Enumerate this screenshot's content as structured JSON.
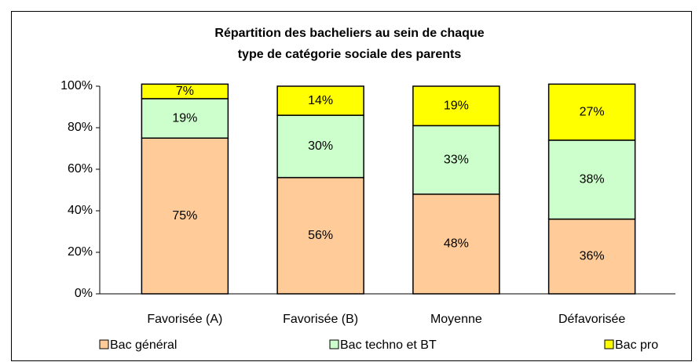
{
  "chart_data": {
    "type": "stacked_bar",
    "title": [
      "Répartition des bacheliers au sein de chaque",
      "type de catégorie sociale des parents"
    ],
    "categories": [
      "Favorisée (A)",
      "Favorisée (B)",
      "Moyenne",
      "Défavorisée"
    ],
    "series": [
      {
        "name": "Bac général",
        "color": "#FFCC99",
        "values": [
          75,
          56,
          48,
          36
        ],
        "value_labels": [
          "75%",
          "56%",
          "48%",
          "36%"
        ]
      },
      {
        "name": "Bac techno et BT",
        "color": "#CCFFCC",
        "values": [
          19,
          30,
          33,
          38
        ],
        "value_labels": [
          "19%",
          "30%",
          "33%",
          "38%"
        ]
      },
      {
        "name": "Bac pro",
        "color": "#FFFF00",
        "values": [
          7,
          14,
          19,
          27
        ],
        "value_labels": [
          "7%",
          "14%",
          "19%",
          "27%"
        ]
      }
    ],
    "ylim": [
      0,
      100
    ],
    "yticks": [
      {
        "value": 0,
        "label": "0%"
      },
      {
        "value": 20,
        "label": "20%"
      },
      {
        "value": 40,
        "label": "40%"
      },
      {
        "value": 60,
        "label": "60%"
      },
      {
        "value": 80,
        "label": "80%"
      },
      {
        "value": 100,
        "label": "100%"
      }
    ],
    "legend": "bottom"
  }
}
